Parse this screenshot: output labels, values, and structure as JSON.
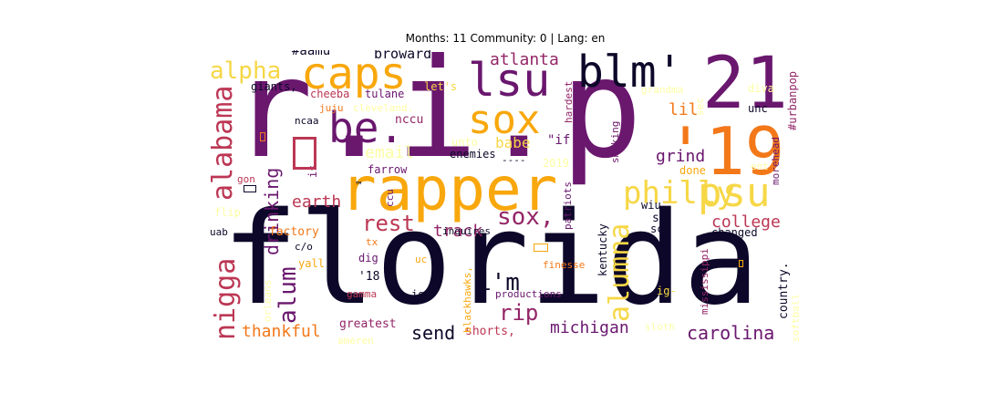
{
  "title": "Months: 11 Community: 0 | Lang: en",
  "palette": {
    "darkest": "#0d0829",
    "purple": "#6a176e",
    "magenta": "#932667",
    "red": "#bc3754",
    "orange": "#f37819",
    "amber": "#f8a70c",
    "yellow": "#f6d746",
    "pale": "#fcffa4"
  },
  "words": {
    "florida": "florida",
    "rip_dots": "r.i.p",
    "rapper": "rapper",
    "blm": "blm'",
    "num21": "21",
    "num19": "'19",
    "caps": "caps",
    "lsu": "lsu",
    "sox": "sox",
    "sox_comma": "sox,",
    "be": "be.",
    "psu": "psu",
    "philly": "philly",
    "alabama": "alabama",
    "nigga": "nigga",
    "alpha": "alpha",
    "alumna": "alumna",
    "rest": "rest",
    "im": "i'm",
    "rip": "rip",
    "alum": "alum",
    "drinking": "drinking",
    "earth": "earth",
    "college": "college",
    "carolina": "carolina",
    "michigan": "michigan",
    "thankful": "thankful",
    "send": "send",
    "track": "track",
    "grind": "grind",
    "atlanta": "atlanta",
    "email": "email",
    "babe": "babe",
    "lil": "lil",
    "broward": "broward",
    "aamu": "#aamu",
    "giants": "giants,",
    "cheeba": "cheeba",
    "tulane": "tulane",
    "lets": "let's",
    "juju": "juju",
    "cleveland": "cleveland.",
    "ncaa": "ncaa",
    "nccu": "nccu",
    "unto": "unto",
    "if": "\"if",
    "enemies": "enemies",
    "dashes": "----",
    "farrow": "farrow",
    "year2019": "2019",
    "is": "is.",
    "tm": "™",
    "gon": "gon",
    "flip": "flip",
    "uab": "uab",
    "factory": "factory",
    "c_o": "c/o",
    "yall": "yall",
    "tx": "tx",
    "dig": "dig",
    "eighteen": "'18",
    "gamma": "gamma",
    "greatest": "greatest",
    "shorts": "shorts,",
    "ig_semi": "ig;",
    "uc": "uc",
    "productions": "productions",
    "finesse": "finesse",
    "ig_dash": "ig-",
    "inquires": "inquires",
    "sc_colon": "sc:",
    "sc_dash": "sc-",
    "wiu": "wiu",
    "changed": "changed",
    "sloth": "sloth",
    "done": "done",
    "ent": "ent",
    "unc": "unc",
    "diva": "diva",
    "grandma": "grandma",
    "sec": "sec",
    "hardest": "hardest",
    "smoking": "smoking",
    "urbanpop": "#urbanpop",
    "morehead": "morehead",
    "country": "country.",
    "softball": "softball",
    "mississippi": "mississippi",
    "kentucky": "kentucky",
    "patriots": "patriots",
    "blackhawks": "blackhawks,",
    "ccu": "ccu",
    "orleans": "orleans.",
    "ameren": "ameren"
  }
}
